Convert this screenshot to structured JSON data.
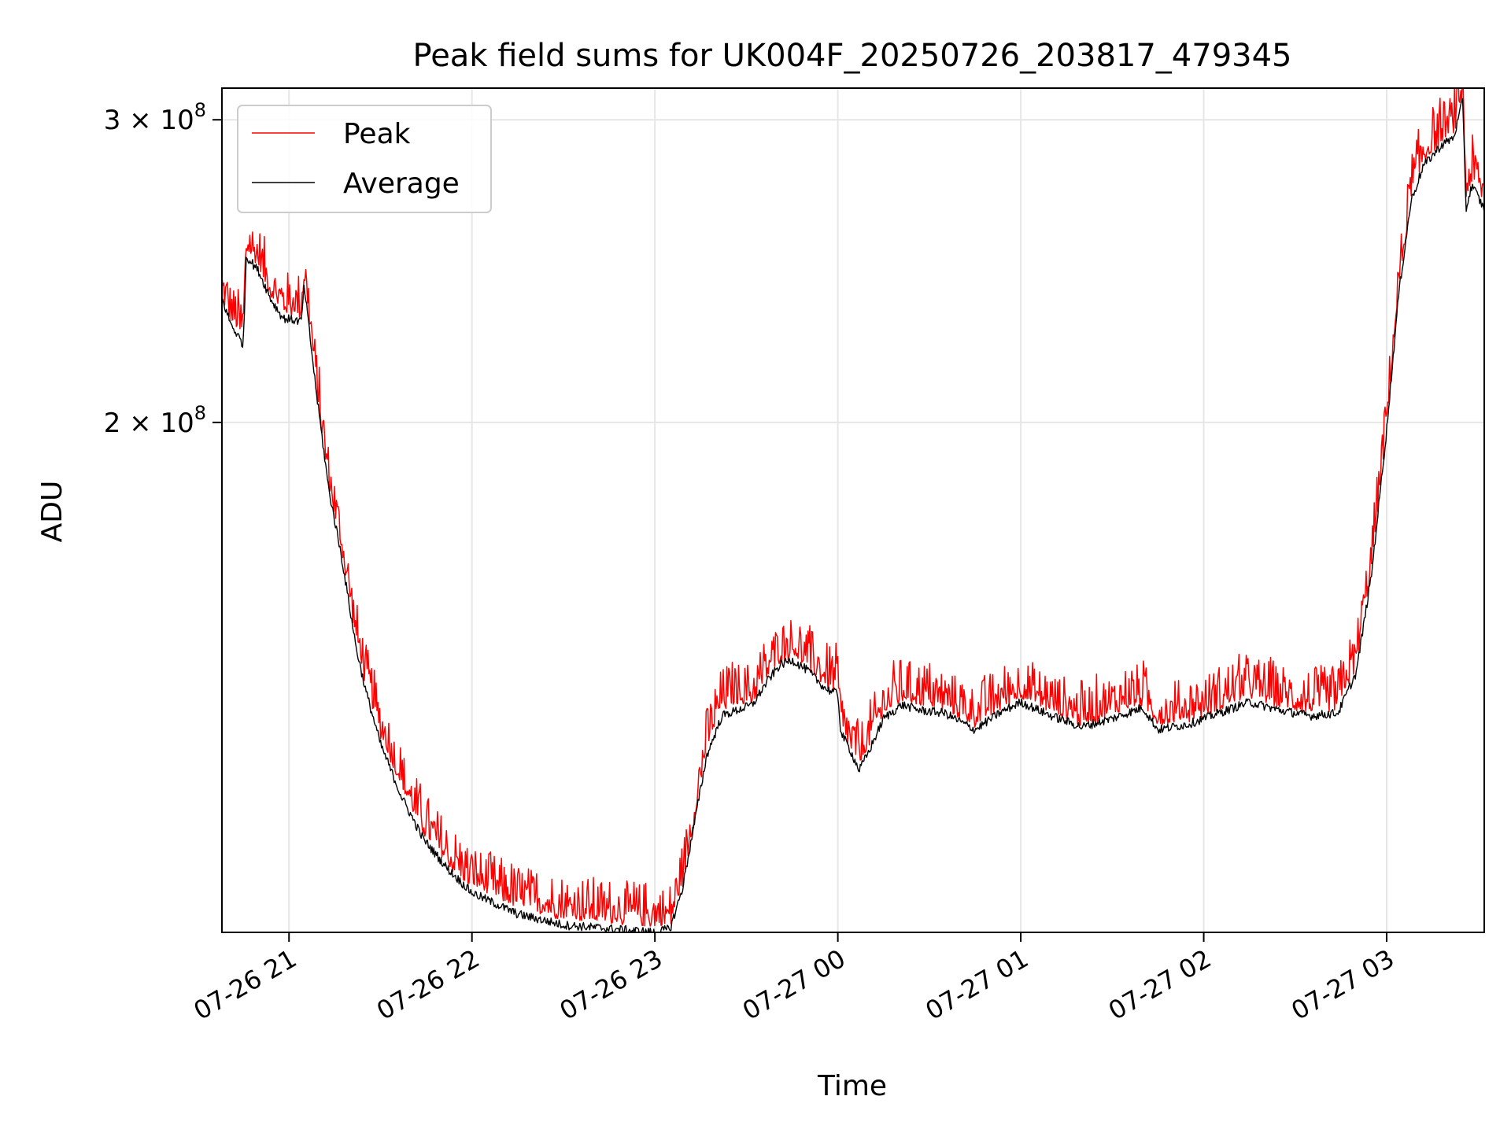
{
  "chart_data": {
    "type": "line",
    "title": "Peak field sums for UK004F_20250726_203817_479345",
    "xlabel": "Time",
    "ylabel": "ADU",
    "x_axis": {
      "kind": "time",
      "start": "2025-07-26 20:38",
      "end": "2025-07-27 03:32",
      "tick_values": [
        "2025-07-26 21:00",
        "2025-07-26 22:00",
        "2025-07-26 23:00",
        "2025-07-27 00:00",
        "2025-07-27 01:00",
        "2025-07-27 02:00",
        "2025-07-27 03:00"
      ],
      "tick_labels": [
        "07-26 21",
        "07-26 22",
        "07-26 23",
        "07-27 00",
        "07-27 01",
        "07-27 02",
        "07-27 03"
      ]
    },
    "y_axis": {
      "scale": "log",
      "ylim": [
        101000000,
        313000000
      ],
      "tick_values": [
        200000000,
        300000000
      ],
      "tick_bases": [
        "2 × 10",
        "3 × 10"
      ],
      "tick_exponents": [
        "8",
        "8"
      ]
    },
    "grid": true,
    "legend_position": "top-left",
    "series": [
      {
        "name": "Peak",
        "color": "#ff0000",
        "noise_amplitude": 0.06,
        "points": [
          [
            "2025-07-26 20:38",
            238000000.0
          ],
          [
            "2025-07-26 20:41",
            230000000.0
          ],
          [
            "2025-07-26 20:45",
            225000000.0
          ],
          [
            "2025-07-26 20:46",
            252000000.0
          ],
          [
            "2025-07-26 20:50",
            248000000.0
          ],
          [
            "2025-07-26 20:54",
            238000000.0
          ],
          [
            "2025-07-26 20:58",
            233000000.0
          ],
          [
            "2025-07-26 21:04",
            232000000.0
          ],
          [
            "2025-07-26 21:05",
            244000000.0
          ],
          [
            "2025-07-26 21:09",
            210000000.0
          ],
          [
            "2025-07-26 21:13",
            185000000.0
          ],
          [
            "2025-07-26 21:17",
            170000000.0
          ],
          [
            "2025-07-26 21:22",
            150000000.0
          ],
          [
            "2025-07-26 21:25",
            142000000.0
          ],
          [
            "2025-07-26 21:30",
            132000000.0
          ],
          [
            "2025-07-26 21:37",
            123000000.0
          ],
          [
            "2025-07-26 21:44",
            116000000.0
          ],
          [
            "2025-07-26 21:52",
            111000000.0
          ],
          [
            "2025-07-26 22:00",
            108000000.0
          ],
          [
            "2025-07-26 22:15",
            105000000.0
          ],
          [
            "2025-07-26 22:30",
            103500000.0
          ],
          [
            "2025-07-26 22:45",
            103000000.0
          ],
          [
            "2025-07-26 23:00",
            102500000.0
          ],
          [
            "2025-07-26 23:05",
            102500000.0
          ],
          [
            "2025-07-26 23:09",
            108000000.0
          ],
          [
            "2025-07-26 23:13",
            118000000.0
          ],
          [
            "2025-07-26 23:17",
            130000000.0
          ],
          [
            "2025-07-26 23:22",
            137000000.0
          ],
          [
            "2025-07-26 23:27",
            138000000.0
          ],
          [
            "2025-07-26 23:32",
            138000000.0
          ],
          [
            "2025-07-26 23:37",
            143000000.0
          ],
          [
            "2025-07-26 23:41",
            146000000.0
          ],
          [
            "2025-07-26 23:45",
            147000000.0
          ],
          [
            "2025-07-26 23:50",
            145000000.0
          ],
          [
            "2025-07-26 23:56",
            141000000.0
          ],
          [
            "2025-07-27 00:00",
            140500000.0
          ],
          [
            "2025-07-27 00:01",
            133000000.0
          ],
          [
            "2025-07-27 00:04",
            130000000.0
          ],
          [
            "2025-07-27 00:07",
            127000000.0
          ],
          [
            "2025-07-27 00:10",
            130000000.0
          ],
          [
            "2025-07-27 00:15",
            136000000.0
          ],
          [
            "2025-07-27 00:21",
            138500000.0
          ],
          [
            "2025-07-27 00:27",
            138000000.0
          ],
          [
            "2025-07-27 00:35",
            137000000.0
          ],
          [
            "2025-07-27 00:45",
            134000000.0
          ],
          [
            "2025-07-27 00:53",
            137000000.0
          ],
          [
            "2025-07-27 01:00",
            139000000.0
          ],
          [
            "2025-07-27 01:10",
            136500000.0
          ],
          [
            "2025-07-27 01:20",
            134000000.0
          ],
          [
            "2025-07-27 01:30",
            136000000.0
          ],
          [
            "2025-07-27 01:40",
            138000000.0
          ],
          [
            "2025-07-27 01:45",
            134000000.0
          ],
          [
            "2025-07-27 01:55",
            135000000.0
          ],
          [
            "2025-07-27 02:05",
            137000000.0
          ],
          [
            "2025-07-27 02:15",
            139500000.0
          ],
          [
            "2025-07-27 02:25",
            137500000.0
          ],
          [
            "2025-07-27 02:35",
            136500000.0
          ],
          [
            "2025-07-27 02:44",
            137000000.0
          ],
          [
            "2025-07-27 02:50",
            145000000.0
          ],
          [
            "2025-07-27 02:55",
            165000000.0
          ],
          [
            "2025-07-27 03:00",
            200000000.0
          ],
          [
            "2025-07-27 03:04",
            240000000.0
          ],
          [
            "2025-07-27 03:08",
            272000000.0
          ],
          [
            "2025-07-27 03:12",
            285000000.0
          ],
          [
            "2025-07-27 03:18",
            293000000.0
          ],
          [
            "2025-07-27 03:22",
            296000000.0
          ],
          [
            "2025-07-27 03:25",
            312000000.0
          ],
          [
            "2025-07-27 03:26",
            272000000.0
          ],
          [
            "2025-07-27 03:28",
            278000000.0
          ],
          [
            "2025-07-27 03:32",
            270000000.0
          ]
        ]
      },
      {
        "name": "Average",
        "color": "#000000",
        "noise_amplitude": 0.012,
        "points": [
          [
            "2025-07-26 20:38",
            236000000.0
          ],
          [
            "2025-07-26 20:41",
            228000000.0
          ],
          [
            "2025-07-26 20:45",
            222000000.0
          ],
          [
            "2025-07-26 20:46",
            250000000.0
          ],
          [
            "2025-07-26 20:50",
            245000000.0
          ],
          [
            "2025-07-26 20:54",
            236000000.0
          ],
          [
            "2025-07-26 20:58",
            230000000.0
          ],
          [
            "2025-07-26 21:04",
            229000000.0
          ],
          [
            "2025-07-26 21:05",
            240000000.0
          ],
          [
            "2025-07-26 21:09",
            208000000.0
          ],
          [
            "2025-07-26 21:13",
            183000000.0
          ],
          [
            "2025-07-26 21:17",
            168000000.0
          ],
          [
            "2025-07-26 21:22",
            148000000.0
          ],
          [
            "2025-07-26 21:25",
            140000000.0
          ],
          [
            "2025-07-26 21:30",
            130000000.0
          ],
          [
            "2025-07-26 21:37",
            121000000.0
          ],
          [
            "2025-07-26 21:44",
            114500000.0
          ],
          [
            "2025-07-26 21:52",
            110000000.0
          ],
          [
            "2025-07-26 22:00",
            106500000.0
          ],
          [
            "2025-07-26 22:15",
            103500000.0
          ],
          [
            "2025-07-26 22:30",
            102000000.0
          ],
          [
            "2025-07-26 22:45",
            101500000.0
          ],
          [
            "2025-07-26 23:00",
            101000000.0
          ],
          [
            "2025-07-26 23:05",
            101500000.0
          ],
          [
            "2025-07-26 23:09",
            107000000.0
          ],
          [
            "2025-07-26 23:13",
            117000000.0
          ],
          [
            "2025-07-26 23:17",
            128000000.0
          ],
          [
            "2025-07-26 23:22",
            135000000.0
          ],
          [
            "2025-07-26 23:27",
            136000000.0
          ],
          [
            "2025-07-26 23:32",
            137000000.0
          ],
          [
            "2025-07-26 23:37",
            141500000.0
          ],
          [
            "2025-07-26 23:41",
            144500000.0
          ],
          [
            "2025-07-26 23:45",
            145500000.0
          ],
          [
            "2025-07-26 23:50",
            143500000.0
          ],
          [
            "2025-07-26 23:56",
            140000000.0
          ],
          [
            "2025-07-27 00:00",
            139000000.0
          ],
          [
            "2025-07-27 00:01",
            132000000.0
          ],
          [
            "2025-07-27 00:04",
            129000000.0
          ],
          [
            "2025-07-27 00:07",
            125500000.0
          ],
          [
            "2025-07-27 00:10",
            128500000.0
          ],
          [
            "2025-07-27 00:15",
            134500000.0
          ],
          [
            "2025-07-27 00:21",
            137000000.0
          ],
          [
            "2025-07-27 00:27",
            136000000.0
          ],
          [
            "2025-07-27 00:35",
            135500000.0
          ],
          [
            "2025-07-27 00:45",
            132500000.0
          ],
          [
            "2025-07-27 00:53",
            135500000.0
          ],
          [
            "2025-07-27 01:00",
            137500000.0
          ],
          [
            "2025-07-27 01:10",
            135000000.0
          ],
          [
            "2025-07-27 01:20",
            133000000.0
          ],
          [
            "2025-07-27 01:30",
            134500000.0
          ],
          [
            "2025-07-27 01:40",
            136500000.0
          ],
          [
            "2025-07-27 01:45",
            132500000.0
          ],
          [
            "2025-07-27 01:55",
            133500000.0
          ],
          [
            "2025-07-27 02:05",
            135500000.0
          ],
          [
            "2025-07-27 02:15",
            137500000.0
          ],
          [
            "2025-07-27 02:25",
            136000000.0
          ],
          [
            "2025-07-27 02:35",
            135000000.0
          ],
          [
            "2025-07-27 02:44",
            135500000.0
          ],
          [
            "2025-07-27 02:50",
            143000000.0
          ],
          [
            "2025-07-27 02:55",
            163000000.0
          ],
          [
            "2025-07-27 03:00",
            198000000.0
          ],
          [
            "2025-07-27 03:04",
            238000000.0
          ],
          [
            "2025-07-27 03:08",
            269000000.0
          ],
          [
            "2025-07-27 03:12",
            282000000.0
          ],
          [
            "2025-07-27 03:18",
            290000000.0
          ],
          [
            "2025-07-27 03:22",
            293000000.0
          ],
          [
            "2025-07-27 03:25",
            308000000.0
          ],
          [
            "2025-07-27 03:26",
            266000000.0
          ],
          [
            "2025-07-27 03:28",
            275000000.0
          ],
          [
            "2025-07-27 03:32",
            266000000.0
          ]
        ]
      }
    ]
  }
}
